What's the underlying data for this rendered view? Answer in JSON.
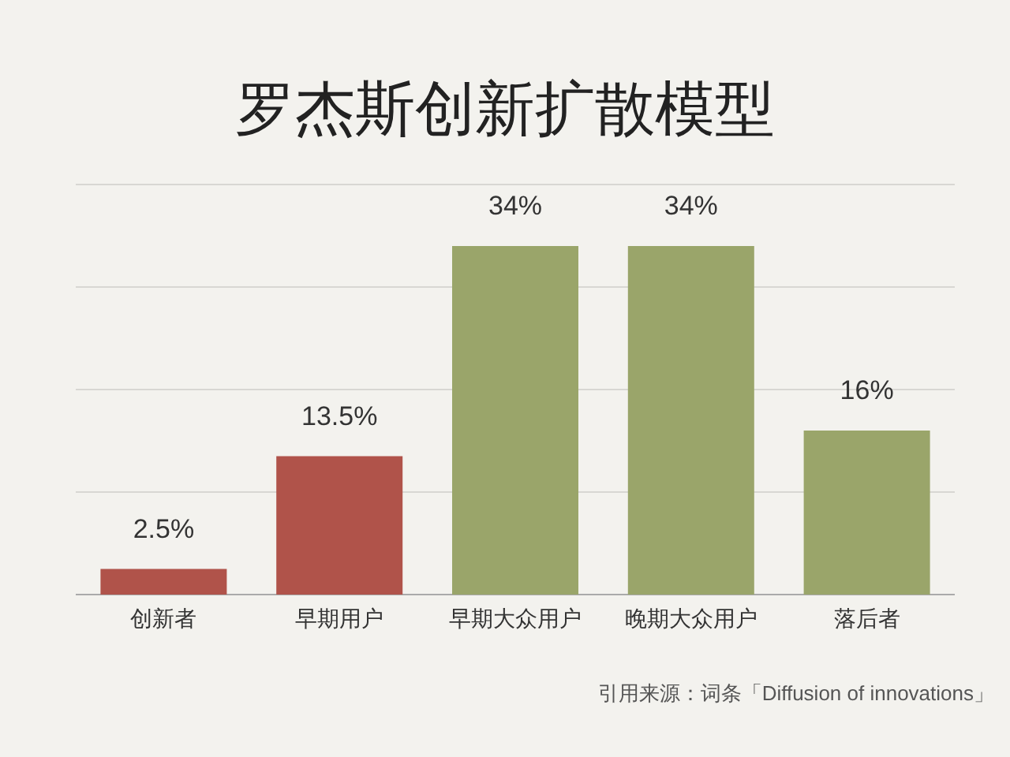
{
  "chart_data": {
    "type": "bar",
    "title": "罗杰斯创新扩散模型",
    "categories": [
      "创新者",
      "早期用户",
      "早期大众用户",
      "晚期大众用户",
      "落后者"
    ],
    "values": [
      2.5,
      13.5,
      34,
      34,
      16
    ],
    "colors": [
      "#b0534a",
      "#b0534a",
      "#9aa56a",
      "#9aa56a",
      "#9aa56a"
    ],
    "value_labels": [
      "2.5%",
      "13.5%",
      "34%",
      "34%",
      "16%"
    ],
    "ylim": [
      0,
      40
    ],
    "yticks": [
      {
        "value": 0,
        "label": null
      },
      {
        "value": 10,
        "label": null
      },
      {
        "value": 20,
        "label": null
      },
      {
        "value": 30,
        "label": null
      },
      {
        "value": 40,
        "label": null
      }
    ],
    "grid": "y",
    "tick_labels": "x",
    "annotations": [
      "引用来源：词条「Diffusion of innovations」"
    ]
  }
}
